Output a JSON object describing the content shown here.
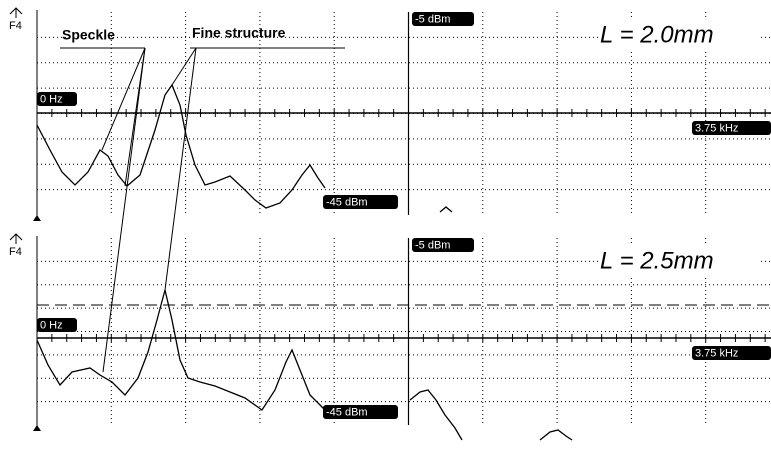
{
  "annotations": {
    "speckle": "Speckle",
    "fine_structure": "Fine structure"
  },
  "panels": [
    {
      "channel": "F4",
      "ref_level": "-5 dBm",
      "length_label": "L = 2.0mm",
      "start_freq": "0 Hz",
      "stop_freq": "3.75 kHz",
      "bottom_level": "-45 dBm"
    },
    {
      "channel": "F4",
      "ref_level": "-5 dBm",
      "length_label": "L = 2.5mm",
      "start_freq": "0 Hz",
      "stop_freq": "3.75 kHz",
      "bottom_level": "-45 dBm"
    }
  ]
}
